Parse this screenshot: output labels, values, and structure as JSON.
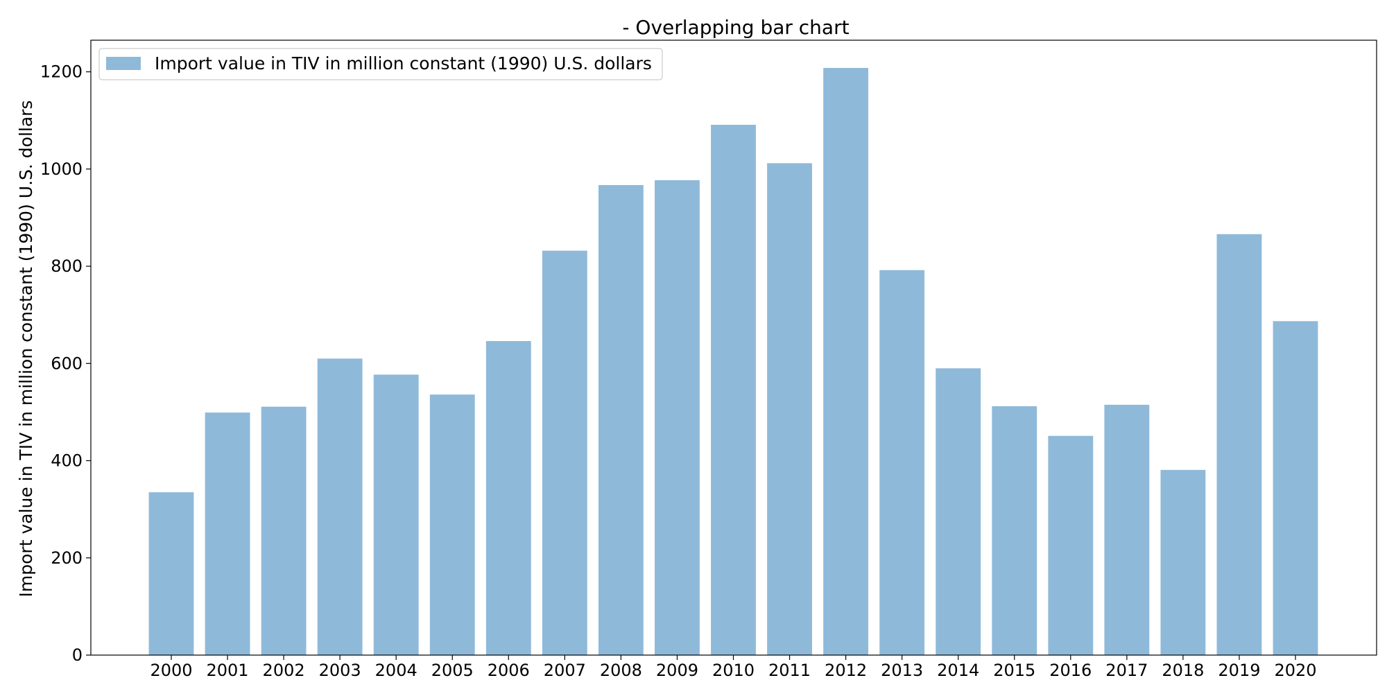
{
  "chart_data": {
    "type": "bar",
    "title": "- Overlapping bar chart",
    "xlabel": "",
    "ylabel": "Import value in TIV in million constant (1990) U.S. dollars",
    "categories": [
      "2000",
      "2001",
      "2002",
      "2003",
      "2004",
      "2005",
      "2006",
      "2007",
      "2008",
      "2009",
      "2010",
      "2011",
      "2012",
      "2013",
      "2014",
      "2015",
      "2016",
      "2017",
      "2018",
      "2019",
      "2020"
    ],
    "series": [
      {
        "name": "Import value in TIV in million constant (1990) U.S. dollars",
        "values": [
          335,
          499,
          511,
          610,
          577,
          536,
          646,
          832,
          967,
          977,
          1091,
          1012,
          1208,
          792,
          590,
          512,
          451,
          515,
          381,
          866,
          687
        ],
        "color": "#8fb9d9"
      }
    ],
    "ylim": [
      0,
      1265
    ],
    "yticks": [
      0,
      200,
      400,
      600,
      800,
      1000,
      1200
    ],
    "grid": false,
    "legend_position": "top-left"
  }
}
